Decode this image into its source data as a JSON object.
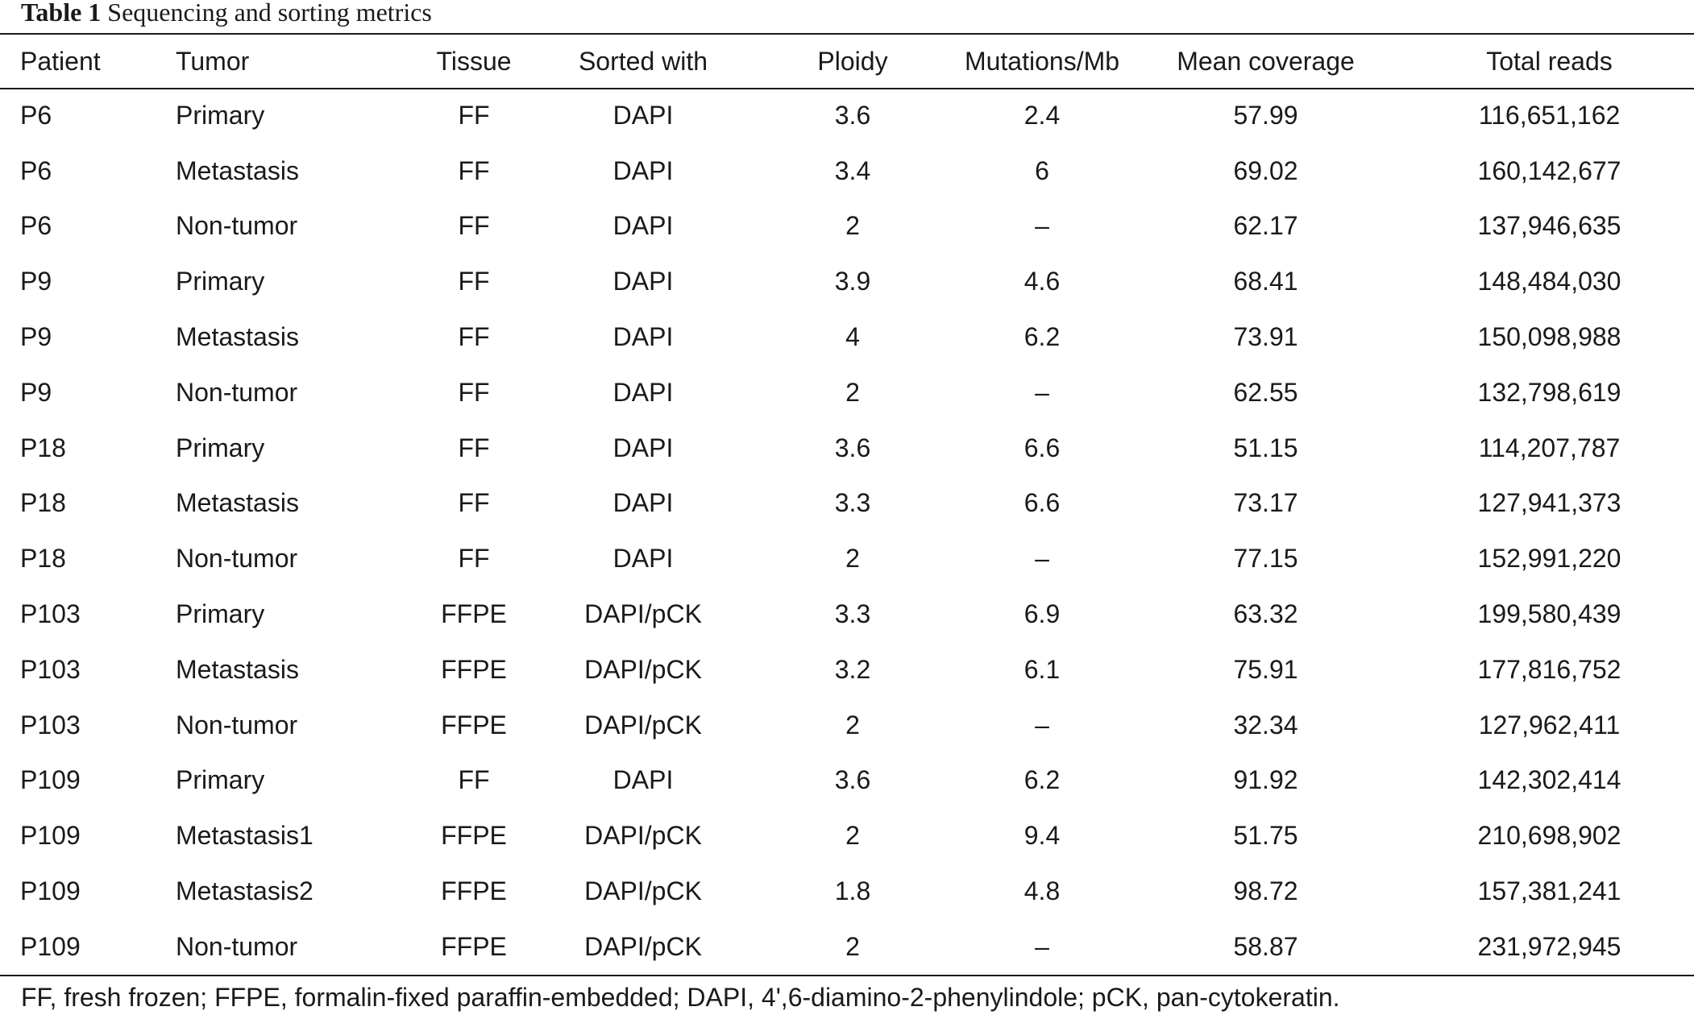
{
  "caption": {
    "label": "Table 1",
    "title": "Sequencing and sorting metrics"
  },
  "table": {
    "headers": [
      "Patient",
      "Tumor",
      "Tissue",
      "Sorted with",
      "Ploidy",
      "Mutations/Mb",
      "Mean coverage",
      "Total reads"
    ],
    "rows": [
      [
        "P6",
        "Primary",
        "FF",
        "DAPI",
        "3.6",
        "2.4",
        "57.99",
        "116,651,162"
      ],
      [
        "P6",
        "Metastasis",
        "FF",
        "DAPI",
        "3.4",
        "6",
        "69.02",
        "160,142,677"
      ],
      [
        "P6",
        "Non-tumor",
        "FF",
        "DAPI",
        "2",
        "–",
        "62.17",
        "137,946,635"
      ],
      [
        "P9",
        "Primary",
        "FF",
        "DAPI",
        "3.9",
        "4.6",
        "68.41",
        "148,484,030"
      ],
      [
        "P9",
        "Metastasis",
        "FF",
        "DAPI",
        "4",
        "6.2",
        "73.91",
        "150,098,988"
      ],
      [
        "P9",
        "Non-tumor",
        "FF",
        "DAPI",
        "2",
        "–",
        "62.55",
        "132,798,619"
      ],
      [
        "P18",
        "Primary",
        "FF",
        "DAPI",
        "3.6",
        "6.6",
        "51.15",
        "114,207,787"
      ],
      [
        "P18",
        "Metastasis",
        "FF",
        "DAPI",
        "3.3",
        "6.6",
        "73.17",
        "127,941,373"
      ],
      [
        "P18",
        "Non-tumor",
        "FF",
        "DAPI",
        "2",
        "–",
        "77.15",
        "152,991,220"
      ],
      [
        "P103",
        "Primary",
        "FFPE",
        "DAPI/pCK",
        "3.3",
        "6.9",
        "63.32",
        "199,580,439"
      ],
      [
        "P103",
        "Metastasis",
        "FFPE",
        "DAPI/pCK",
        "3.2",
        "6.1",
        "75.91",
        "177,816,752"
      ],
      [
        "P103",
        "Non-tumor",
        "FFPE",
        "DAPI/pCK",
        "2",
        "–",
        "32.34",
        "127,962,411"
      ],
      [
        "P109",
        "Primary",
        "FF",
        "DAPI",
        "3.6",
        "6.2",
        "91.92",
        "142,302,414"
      ],
      [
        "P109",
        "Metastasis1",
        "FFPE",
        "DAPI/pCK",
        "2",
        "9.4",
        "51.75",
        "210,698,902"
      ],
      [
        "P109",
        "Metastasis2",
        "FFPE",
        "DAPI/pCK",
        "1.8",
        "4.8",
        "98.72",
        "157,381,241"
      ],
      [
        "P109",
        "Non-tumor",
        "FFPE",
        "DAPI/pCK",
        "2",
        "–",
        "58.87",
        "231,972,945"
      ]
    ]
  },
  "footnote": "FF, fresh frozen; FFPE, formalin-fixed paraffin-embedded; DAPI, 4',6-diamino-2-phenylindole; pCK, pan-cytokeratin."
}
